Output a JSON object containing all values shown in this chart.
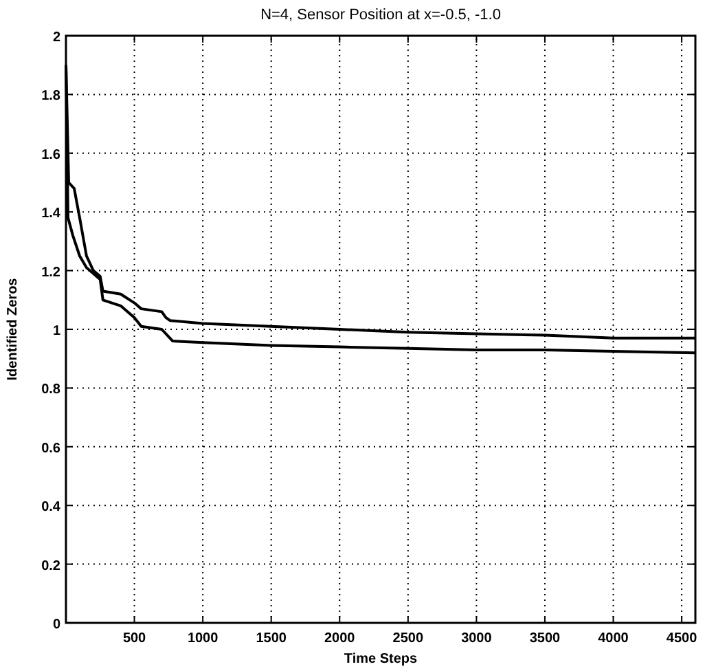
{
  "chart_data": {
    "type": "line",
    "title": "N=4, Sensor Position at x=-0.5, -1.0",
    "xlabel": "Time Steps",
    "ylabel": "Identified Zeros",
    "xlim": [
      0,
      4600
    ],
    "xticks": [
      500,
      1000,
      1500,
      2000,
      2500,
      3000,
      3500,
      4000,
      4500
    ],
    "ylim": [
      0,
      2
    ],
    "yticks": [
      0,
      0.2,
      0.4,
      0.6,
      0.8,
      1,
      1.2,
      1.4,
      1.6,
      1.8,
      2
    ],
    "grid": true,
    "line_style": "solid",
    "series": [
      {
        "color": "#000000",
        "x": [
          0,
          20,
          60,
          100,
          150,
          200,
          250,
          270,
          400,
          500,
          550,
          700,
          730,
          760,
          1000,
          1500,
          2000,
          2500,
          3000,
          3500,
          4000,
          4600
        ],
        "values": [
          1.9,
          1.5,
          1.48,
          1.38,
          1.25,
          1.2,
          1.18,
          1.13,
          1.12,
          1.09,
          1.07,
          1.06,
          1.04,
          1.03,
          1.02,
          1.01,
          1.0,
          0.99,
          0.985,
          0.98,
          0.97,
          0.97
        ]
      },
      {
        "color": "#000000",
        "x": [
          0,
          15,
          50,
          100,
          150,
          250,
          270,
          400,
          500,
          550,
          700,
          780,
          1000,
          1500,
          2000,
          2500,
          3000,
          3500,
          4000,
          4600
        ],
        "values": [
          1.9,
          1.38,
          1.32,
          1.25,
          1.21,
          1.17,
          1.1,
          1.08,
          1.04,
          1.01,
          1.0,
          0.96,
          0.955,
          0.945,
          0.94,
          0.935,
          0.93,
          0.93,
          0.925,
          0.92
        ]
      }
    ]
  }
}
